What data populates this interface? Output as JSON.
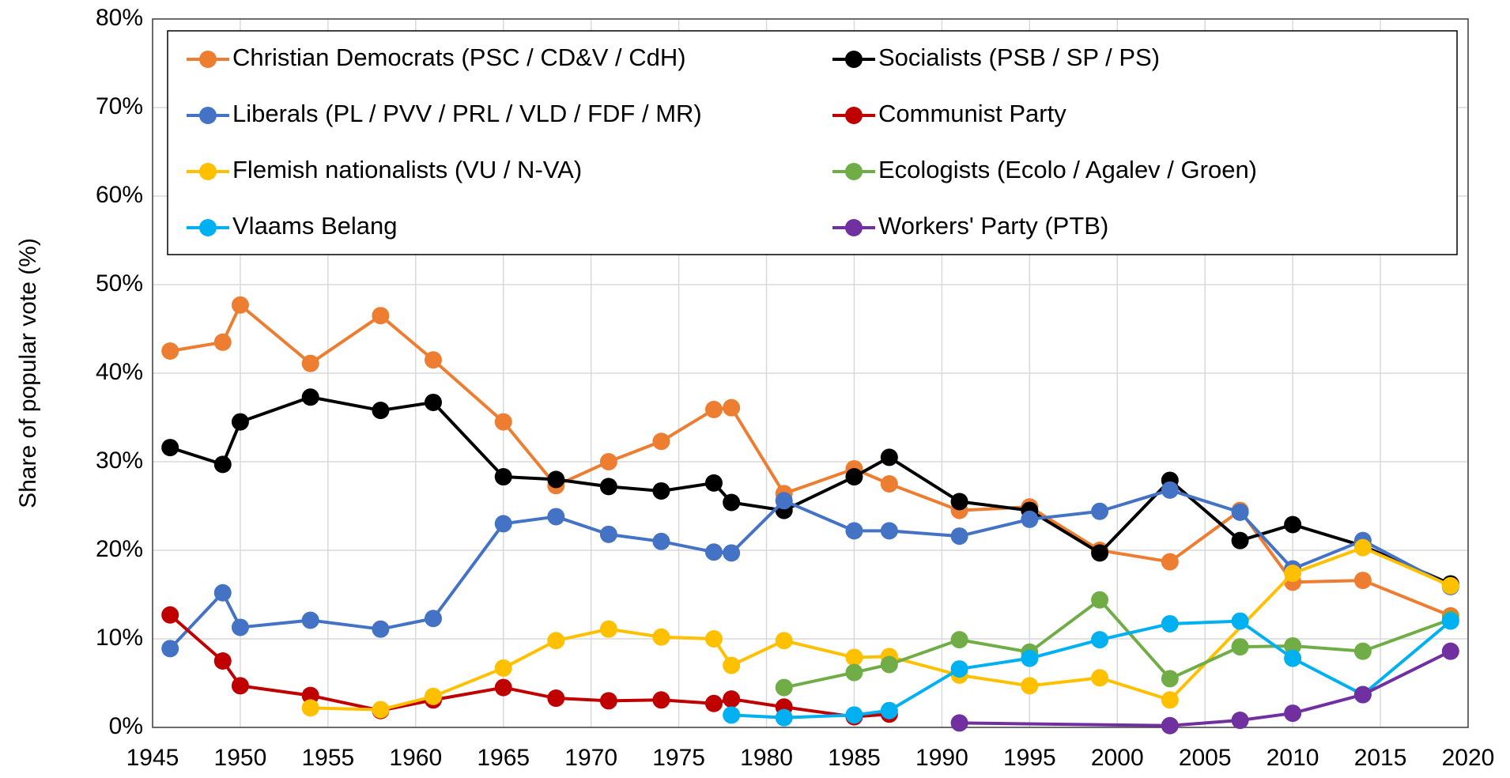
{
  "chart_data": {
    "type": "line",
    "y_label": "Share of popular vote (%)",
    "xlim": [
      1945,
      2020
    ],
    "xticks": [
      1945,
      1950,
      1955,
      1960,
      1965,
      1970,
      1975,
      1980,
      1985,
      1990,
      1995,
      2000,
      2005,
      2010,
      2015,
      2020
    ],
    "ylim": [
      0,
      80
    ],
    "yticks": [
      {
        "value": 0,
        "label": "0%"
      },
      {
        "value": 10,
        "label": "10%"
      },
      {
        "value": 20,
        "label": "20%"
      },
      {
        "value": 30,
        "label": "30%"
      },
      {
        "value": 40,
        "label": "40%"
      },
      {
        "value": 50,
        "label": "50%"
      },
      {
        "value": 60,
        "label": "60%"
      },
      {
        "value": 70,
        "label": "70%"
      },
      {
        "value": 80,
        "label": "80%"
      }
    ],
    "grid": true,
    "legend": "top",
    "series": [
      {
        "name": "Christian Democrats (PSC / CD&V / CdH)",
        "color": "#ed7d31",
        "x": [
          1946,
          1949,
          1950,
          1954,
          1958,
          1961,
          1965,
          1968,
          1971,
          1974,
          1977,
          1978,
          1981,
          1985,
          1987,
          1991,
          1995,
          1999,
          2003,
          2007,
          2010,
          2014,
          2019
        ],
        "values": [
          42.5,
          43.5,
          47.7,
          41.1,
          46.5,
          41.5,
          34.5,
          27.3,
          30.0,
          32.3,
          35.9,
          36.1,
          26.4,
          29.2,
          27.5,
          24.5,
          24.9,
          20.0,
          18.7,
          24.5,
          16.4,
          16.6,
          12.6
        ]
      },
      {
        "name": "Socialists (PSB / SP / PS)",
        "color": "#000000",
        "x": [
          1946,
          1949,
          1950,
          1954,
          1958,
          1961,
          1965,
          1968,
          1971,
          1974,
          1977,
          1978,
          1981,
          1985,
          1987,
          1991,
          1995,
          1999,
          2003,
          2007,
          2010,
          2014,
          2019
        ],
        "values": [
          31.6,
          29.7,
          34.5,
          37.3,
          35.8,
          36.7,
          28.3,
          28.0,
          27.2,
          26.7,
          27.6,
          25.4,
          24.5,
          28.3,
          30.5,
          25.5,
          24.5,
          19.7,
          27.9,
          21.1,
          22.9,
          20.5,
          16.2
        ]
      },
      {
        "name": "Liberals (PL / PVV / PRL / VLD / FDF / MR)",
        "color": "#4472c4",
        "x": [
          1946,
          1949,
          1950,
          1954,
          1958,
          1961,
          1965,
          1968,
          1971,
          1974,
          1977,
          1978,
          1981,
          1985,
          1987,
          1991,
          1995,
          1999,
          2003,
          2007,
          2010,
          2014,
          2019
        ],
        "values": [
          8.9,
          15.2,
          11.3,
          12.1,
          11.1,
          12.3,
          23.0,
          23.8,
          21.8,
          21.0,
          19.8,
          19.7,
          25.6,
          22.2,
          22.2,
          21.6,
          23.5,
          24.4,
          26.8,
          24.3,
          17.9,
          21.1,
          15.9
        ]
      },
      {
        "name": "Communist Party",
        "color": "#c00000",
        "x": [
          1946,
          1949,
          1950,
          1954,
          1958,
          1961,
          1965,
          1968,
          1971,
          1974,
          1977,
          1978,
          1981,
          1985,
          1987
        ],
        "values": [
          12.7,
          7.5,
          4.7,
          3.6,
          1.9,
          3.1,
          4.5,
          3.3,
          3.0,
          3.1,
          2.7,
          3.2,
          2.3,
          1.2,
          1.5
        ]
      },
      {
        "name": "Flemish nationalists (VU / N-VA)",
        "color": "#ffc000",
        "x": [
          1954,
          1958,
          1961,
          1965,
          1968,
          1971,
          1974,
          1977,
          1978,
          1981,
          1985,
          1987,
          1991,
          1995,
          1999,
          2003,
          2010,
          2014,
          2019
        ],
        "values": [
          2.2,
          2.0,
          3.5,
          6.7,
          9.8,
          11.1,
          10.2,
          10.0,
          7.0,
          9.8,
          7.9,
          8.0,
          5.9,
          4.7,
          5.6,
          3.1,
          17.4,
          20.3,
          16.0
        ]
      },
      {
        "name": "Ecologists (Ecolo / Agalev / Groen)",
        "color": "#70ad47",
        "x": [
          1981,
          1985,
          1987,
          1991,
          1995,
          1999,
          2003,
          2007,
          2010,
          2014,
          2019
        ],
        "values": [
          4.5,
          6.2,
          7.1,
          9.9,
          8.5,
          14.4,
          5.5,
          9.1,
          9.2,
          8.6,
          12.2
        ]
      },
      {
        "name": "Vlaams Belang",
        "color": "#00b0f0",
        "x": [
          1978,
          1981,
          1985,
          1987,
          1991,
          1995,
          1999,
          2003,
          2007,
          2010,
          2014,
          2019
        ],
        "values": [
          1.4,
          1.1,
          1.4,
          1.9,
          6.6,
          7.8,
          9.9,
          11.7,
          12.0,
          7.8,
          3.7,
          12.0
        ]
      },
      {
        "name": "Workers' Party (PTB)",
        "color": "#7030a0",
        "x": [
          1991,
          2003,
          2007,
          2010,
          2014,
          2019
        ],
        "values": [
          0.5,
          0.2,
          0.8,
          1.6,
          3.7,
          8.6
        ]
      }
    ]
  }
}
